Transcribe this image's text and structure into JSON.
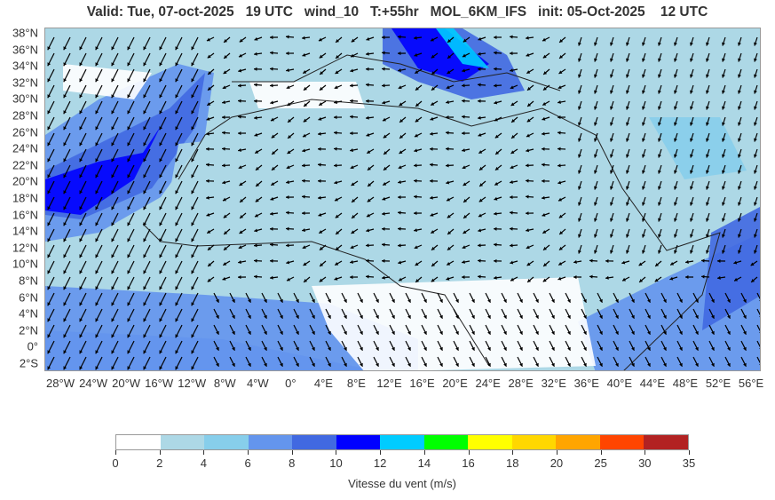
{
  "title": "Valid: Tue, 07-oct-2025   19 UTC   wind_10   T:+55hr   MOL_6KM_IFS   init: 05-Oct-2025    12 UTC",
  "map": {
    "variable": "wind_10",
    "lat_labels": [
      "38°N",
      "36°N",
      "34°N",
      "32°N",
      "30°N",
      "28°N",
      "26°N",
      "24°N",
      "22°N",
      "20°N",
      "18°N",
      "16°N",
      "14°N",
      "12°N",
      "10°N",
      "8°N",
      "6°N",
      "4°N",
      "2°N",
      "0°",
      "2°S"
    ],
    "lon_labels": [
      "28°W",
      "24°W",
      "20°W",
      "16°W",
      "12°W",
      "8°W",
      "4°W",
      "0°",
      "4°E",
      "8°E",
      "12°E",
      "16°E",
      "20°E",
      "24°E",
      "28°E",
      "32°E",
      "36°E",
      "40°E",
      "44°E",
      "48°E",
      "52°E",
      "56°E"
    ],
    "extent": {
      "lon": [
        -30,
        57
      ],
      "lat": [
        -3,
        38.5
      ]
    }
  },
  "colorbar": {
    "label": "Vitesse du vent (m/s)",
    "ticks": [
      "0",
      "2",
      "4",
      "6",
      "8",
      "10",
      "12",
      "14",
      "16",
      "18",
      "20",
      "25",
      "30",
      "35"
    ],
    "colors": [
      "#ffffff",
      "#add8e6",
      "#87ceeb",
      "#6495ed",
      "#4169e1",
      "#0000ff",
      "#00ccff",
      "#00ff00",
      "#ffff00",
      "#ffd700",
      "#ffa500",
      "#ff4500",
      "#b22222"
    ]
  }
}
